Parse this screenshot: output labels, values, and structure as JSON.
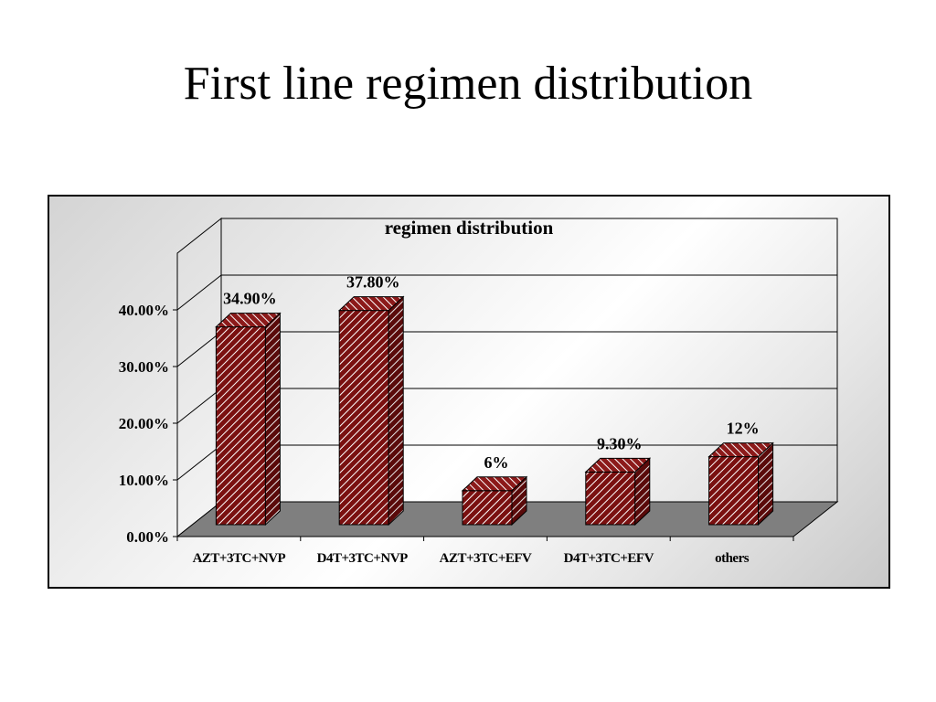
{
  "slide": {
    "title": "First line regimen distribution"
  },
  "chart_data": {
    "type": "bar",
    "title": "regimen distribution",
    "xlabel": "",
    "ylabel": "",
    "categories": [
      "AZT+3TC+NVP",
      "D4T+3TC+NVP",
      "AZT+3TC+EFV",
      "D4T+3TC+EFV",
      "others"
    ],
    "values": [
      34.9,
      37.8,
      6,
      9.3,
      12
    ],
    "data_labels": [
      "34.90%",
      "37.80%",
      "6%",
      "9.30%",
      "12%"
    ],
    "y_ticks": [
      "0.00%",
      "10.00%",
      "20.00%",
      "30.00%",
      "40.00%"
    ],
    "ylim": [
      0,
      50
    ],
    "grid": true,
    "style": "3d-column",
    "bar_color": "#7a1010",
    "bar_pattern": "diagonal-hatch",
    "floor_color": "#7f7f7f"
  }
}
